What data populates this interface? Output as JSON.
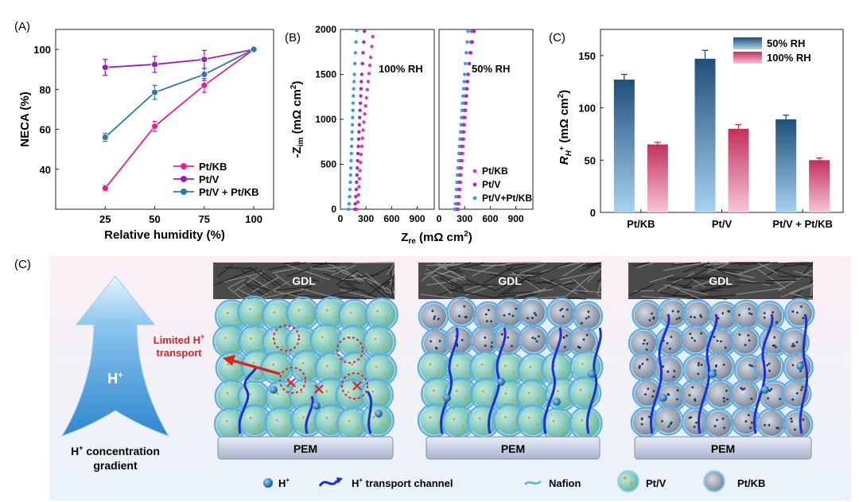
{
  "panelA": {
    "label": "(A)",
    "chart_data": {
      "type": "line",
      "xlabel": "Relative humidity (%)",
      "ylabel": "NECA (%)",
      "x": [
        25,
        50,
        75,
        100
      ],
      "xlim": [
        0,
        110
      ],
      "ylim": [
        20,
        110
      ],
      "xticks": [
        25,
        50,
        75,
        100
      ],
      "yticks": [
        40,
        60,
        80,
        100
      ],
      "legend_position": "bottom-right",
      "series": [
        {
          "name": "Pt/KB",
          "color": "#e8208f",
          "values": [
            30.5,
            61.5,
            82,
            100
          ],
          "errors": [
            1.5,
            2.5,
            3.5,
            0
          ]
        },
        {
          "name": "Pt/V",
          "color": "#9a1dc3",
          "values": [
            91,
            92.5,
            95,
            100
          ],
          "errors": [
            4,
            4,
            4.5,
            0
          ]
        },
        {
          "name": "Pt/V + Pt/KB",
          "color": "#2d78ad",
          "values": [
            56,
            78.5,
            87.5,
            100
          ],
          "errors": [
            2,
            3.5,
            3,
            0
          ]
        }
      ]
    }
  },
  "panelB": {
    "label": "(B)",
    "chart_data": {
      "type": "scatter",
      "xlabel_main": "Z",
      "xlabel_sub": "re",
      "xlabel_rest": " (mΩ cm",
      "xlabel_sup": "2",
      "xlabel_end": ")",
      "ylabel_main": "-Z",
      "ylabel_sub": "im",
      "ylabel_rest": " (mΩ cm",
      "ylabel_sup": "2",
      "ylabel_end": ")",
      "xlim": [
        0,
        1100
      ],
      "ylim": [
        0,
        2000
      ],
      "xticks": [
        0,
        300,
        600,
        900
      ],
      "yticks": [
        0,
        500,
        1000,
        1500,
        2000
      ],
      "legend": [
        "Pt/KB",
        "Pt/V",
        "Pt/V+Pt/KB"
      ],
      "panels": [
        {
          "annotation": "100% RH",
          "series": [
            {
              "name": "Pt/KB",
              "color": "#f0359e",
              "points": [
                [
                  192,
                  0
                ],
                [
                  205,
                  80
                ],
                [
                  212,
                  160
                ],
                [
                  218,
                  250
                ],
                [
                  224,
                  340
                ],
                [
                  230,
                  430
                ],
                [
                  236,
                  520
                ],
                [
                  242,
                  610
                ],
                [
                  250,
                  700
                ],
                [
                  258,
                  790
                ],
                [
                  266,
                  880
                ],
                [
                  275,
                  970
                ],
                [
                  285,
                  1060
                ],
                [
                  295,
                  1150
                ],
                [
                  305,
                  1240
                ],
                [
                  315,
                  1330
                ],
                [
                  325,
                  1420
                ],
                [
                  335,
                  1510
                ],
                [
                  345,
                  1600
                ],
                [
                  355,
                  1690
                ],
                [
                  368,
                  1810
                ],
                [
                  380,
                  1920
                ]
              ]
            },
            {
              "name": "Pt/V",
              "color": "#a626cc",
              "points": [
                [
                  168,
                  0
                ],
                [
                  174,
                  60
                ],
                [
                  180,
                  140
                ],
                [
                  186,
                  220
                ],
                [
                  190,
                  300
                ],
                [
                  194,
                  380
                ],
                [
                  198,
                  460
                ],
                [
                  202,
                  540
                ],
                [
                  206,
                  620
                ],
                [
                  210,
                  700
                ],
                [
                  214,
                  780
                ],
                [
                  218,
                  860
                ],
                [
                  222,
                  940
                ],
                [
                  226,
                  1020
                ],
                [
                  230,
                  1100
                ],
                [
                  234,
                  1180
                ],
                [
                  238,
                  1260
                ],
                [
                  242,
                  1340
                ],
                [
                  246,
                  1420
                ],
                [
                  250,
                  1500
                ],
                [
                  258,
                  1620
                ],
                [
                  266,
                  1740
                ],
                [
                  274,
                  1860
                ],
                [
                  282,
                  1980
                ]
              ]
            },
            {
              "name": "Pt/V+Pt/KB",
              "color": "#3b9be0",
              "points": [
                [
                  95,
                  0
                ],
                [
                  102,
                  60
                ],
                [
                  108,
                  140
                ],
                [
                  112,
                  220
                ],
                [
                  116,
                  300
                ],
                [
                  119,
                  380
                ],
                [
                  122,
                  460
                ],
                [
                  125,
                  540
                ],
                [
                  128,
                  620
                ],
                [
                  131,
                  700
                ],
                [
                  134,
                  780
                ],
                [
                  137,
                  860
                ],
                [
                  140,
                  940
                ],
                [
                  143,
                  1020
                ],
                [
                  146,
                  1100
                ],
                [
                  149,
                  1180
                ],
                [
                  152,
                  1260
                ],
                [
                  156,
                  1340
                ],
                [
                  160,
                  1420
                ],
                [
                  164,
                  1500
                ],
                [
                  170,
                  1620
                ],
                [
                  176,
                  1740
                ],
                [
                  182,
                  1860
                ],
                [
                  190,
                  1990
                ]
              ]
            }
          ]
        },
        {
          "annotation": "50% RH",
          "series": [
            {
              "name": "Pt/KB",
              "color": "#f0359e",
              "points": [
                [
                  225,
                  0
                ],
                [
                  232,
                  60
                ],
                [
                  240,
                  140
                ],
                [
                  246,
                  220
                ],
                [
                  252,
                  300
                ],
                [
                  258,
                  380
                ],
                [
                  264,
                  460
                ],
                [
                  270,
                  540
                ],
                [
                  276,
                  620
                ],
                [
                  282,
                  700
                ],
                [
                  288,
                  780
                ],
                [
                  294,
                  860
                ],
                [
                  300,
                  940
                ],
                [
                  306,
                  1020
                ],
                [
                  312,
                  1100
                ],
                [
                  318,
                  1180
                ],
                [
                  324,
                  1260
                ],
                [
                  330,
                  1340
                ],
                [
                  336,
                  1420
                ],
                [
                  342,
                  1500
                ],
                [
                  352,
                  1620
                ],
                [
                  362,
                  1740
                ],
                [
                  372,
                  1860
                ],
                [
                  382,
                  1980
                ]
              ]
            },
            {
              "name": "Pt/V",
              "color": "#a626cc",
              "points": [
                [
                  205,
                  0
                ],
                [
                  212,
                  60
                ],
                [
                  218,
                  140
                ],
                [
                  224,
                  220
                ],
                [
                  230,
                  300
                ],
                [
                  236,
                  380
                ],
                [
                  242,
                  460
                ],
                [
                  248,
                  540
                ],
                [
                  254,
                  620
                ],
                [
                  260,
                  700
                ],
                [
                  266,
                  780
                ],
                [
                  272,
                  860
                ],
                [
                  280,
                  940
                ],
                [
                  288,
                  1020
                ],
                [
                  296,
                  1100
                ],
                [
                  304,
                  1180
                ],
                [
                  312,
                  1260
                ],
                [
                  320,
                  1340
                ],
                [
                  330,
                  1420
                ],
                [
                  340,
                  1500
                ],
                [
                  356,
                  1620
                ],
                [
                  372,
                  1740
                ],
                [
                  390,
                  1860
                ],
                [
                  410,
                  1980
                ]
              ]
            },
            {
              "name": "Pt/V+Pt/KB",
              "color": "#3b9be0",
              "points": [
                [
                  185,
                  0
                ],
                [
                  192,
                  60
                ],
                [
                  198,
                  140
                ],
                [
                  204,
                  220
                ],
                [
                  210,
                  300
                ],
                [
                  216,
                  380
                ],
                [
                  222,
                  460
                ],
                [
                  228,
                  540
                ],
                [
                  234,
                  620
                ],
                [
                  240,
                  700
                ],
                [
                  246,
                  780
                ],
                [
                  252,
                  860
                ],
                [
                  258,
                  940
                ],
                [
                  264,
                  1020
                ],
                [
                  270,
                  1100
                ],
                [
                  276,
                  1180
                ],
                [
                  282,
                  1260
                ],
                [
                  288,
                  1340
                ],
                [
                  294,
                  1420
                ],
                [
                  300,
                  1500
                ],
                [
                  310,
                  1620
                ],
                [
                  320,
                  1740
                ],
                [
                  330,
                  1860
                ],
                [
                  340,
                  1980
                ]
              ]
            }
          ]
        }
      ]
    }
  },
  "panelC_top": {
    "label": "(C)",
    "chart_data": {
      "type": "bar",
      "categories": [
        "Pt/KB",
        "Pt/V",
        "Pt/V + Pt/KB"
      ],
      "ylabel_main": "R",
      "ylabel_sub": "H",
      "ylabel_supsub": "+",
      "ylabel_rest": " (mΩ cm",
      "ylabel_sup": "2",
      "ylabel_end": ")",
      "ylim": [
        0,
        175
      ],
      "yticks": [
        0,
        50,
        100,
        150
      ],
      "legend_position": "top-right",
      "series": [
        {
          "name": "50% RH",
          "color_top": "#1f4e79",
          "color_bottom": "#a8d2f0",
          "values": [
            127,
            147,
            89
          ],
          "errors": [
            5,
            8,
            4
          ]
        },
        {
          "name": "100% RH",
          "color_top": "#c2305a",
          "color_bottom": "#f7c6d8",
          "values": [
            65,
            80,
            50
          ],
          "errors": [
            2,
            4,
            2
          ]
        }
      ]
    }
  },
  "schematic": {
    "label": "(C)",
    "gradient_label": "H",
    "gradient_sup": "+",
    "gradient_caption_1": "H",
    "gradient_caption_1_sup": "+",
    "gradient_caption_1_rest": " concentration",
    "gradient_caption_2": "gradient",
    "gdl_label": "GDL",
    "pem_label": "PEM",
    "limited_1": "Limited H",
    "limited_sup": "+",
    "limited_2": "transport",
    "legend": {
      "hplus": "H",
      "hplus_sup": "+",
      "channel": "H",
      "channel_sup": "+",
      "channel_rest": " transport channel",
      "nafion": "Nafion",
      "ptv": "Pt/V",
      "ptkb": "Pt/KB"
    },
    "colors": {
      "particle_v": "#7cc9b8",
      "particle_kb": "#8f98a8",
      "nafion": "#5ab0e8",
      "channel": "#1a2fd6",
      "arrow_red": "#e02020"
    }
  }
}
